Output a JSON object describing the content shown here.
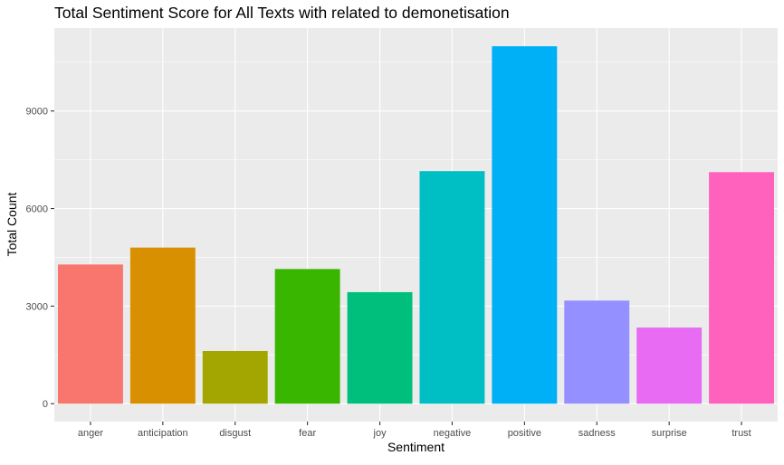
{
  "chart_data": {
    "type": "bar",
    "title": "Total Sentiment Score for All Texts with related to demonetisation",
    "xlabel": "Sentiment",
    "ylabel": "Total Count",
    "categories": [
      "anger",
      "anticipation",
      "disgust",
      "fear",
      "joy",
      "negative",
      "positive",
      "sadness",
      "surprise",
      "trust"
    ],
    "values": [
      4280,
      4800,
      1620,
      4140,
      3430,
      7150,
      10990,
      3170,
      2340,
      7120
    ],
    "colors": [
      "#F8766D",
      "#D89000",
      "#A3A500",
      "#39B600",
      "#00BF7D",
      "#00BFC4",
      "#00B0F6",
      "#9590FF",
      "#E76BF3",
      "#FF62BC"
    ],
    "y_ticks": [
      0,
      3000,
      6000,
      9000
    ],
    "y_tick_labels": [
      "0",
      "3000",
      "6000",
      "9000"
    ],
    "ylim": [
      -550,
      11550
    ],
    "grid": true,
    "legend": "none",
    "panel_background": "#EBEBEB",
    "gridline_color": "#FFFFFF"
  }
}
